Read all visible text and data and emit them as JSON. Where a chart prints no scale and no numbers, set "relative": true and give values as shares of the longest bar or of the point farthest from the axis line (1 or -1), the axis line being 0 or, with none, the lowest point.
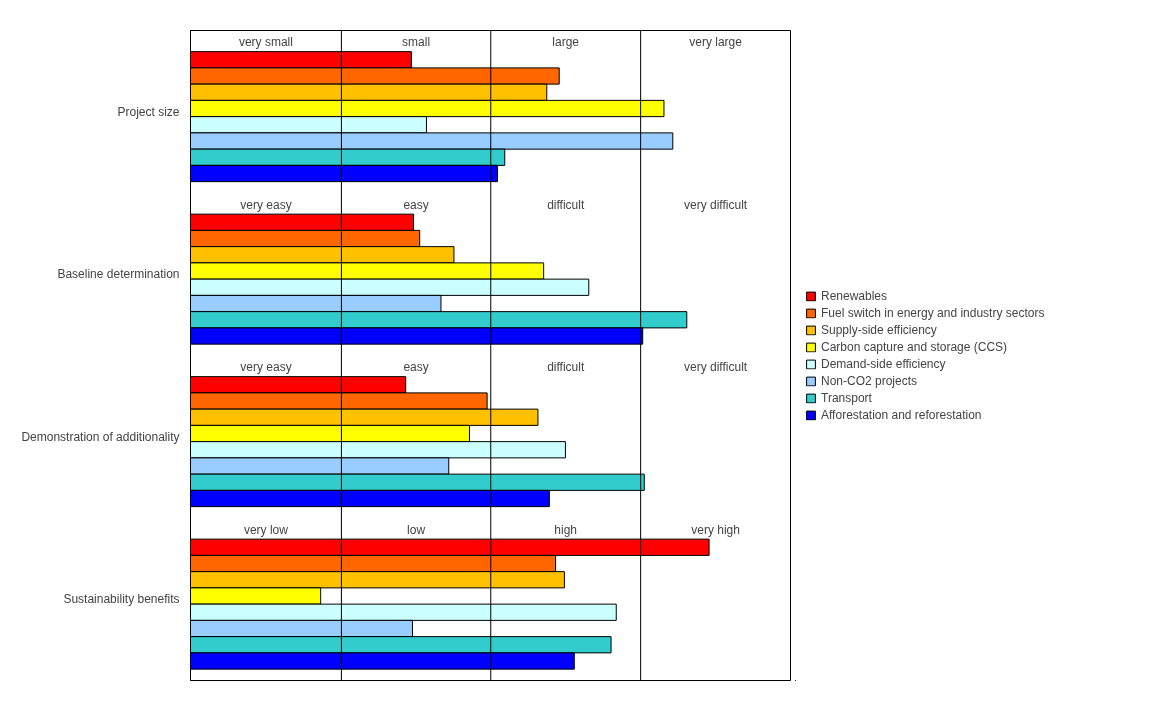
{
  "chart_data": {
    "type": "bar",
    "orientation": "horizontal",
    "relative": true,
    "categories": [
      "Project size",
      "Baseline determination",
      "Demonstration of additionality",
      "Sustainability benefits"
    ],
    "series": [
      {
        "name": "Renewables",
        "color": "#ff0000",
        "values": [
          0.426,
          0.43,
          0.415,
          1.0
        ]
      },
      {
        "name": "Fuel switch in energy and industry sectors",
        "color": "#ff6600",
        "values": [
          0.711,
          0.442,
          0.572,
          0.704
        ]
      },
      {
        "name": "Supply-side efficiency",
        "color": "#ffc000",
        "values": [
          0.687,
          0.508,
          0.67,
          0.721
        ]
      },
      {
        "name": "Carbon capture and storage (CCS)",
        "color": "#ffff00",
        "values": [
          0.913,
          0.681,
          0.538,
          0.251
        ]
      },
      {
        "name": "Demand-side efficiency",
        "color": "#ccffff",
        "values": [
          0.455,
          0.768,
          0.723,
          0.821
        ]
      },
      {
        "name": "Non-CO2 projects",
        "color": "#99ccff",
        "values": [
          0.93,
          0.483,
          0.498,
          0.428
        ]
      },
      {
        "name": "Transport",
        "color": "#33cccc",
        "values": [
          0.606,
          0.957,
          0.875,
          0.811
        ]
      },
      {
        "name": "Afforestation and reforestation",
        "color": "#0000ff",
        "values": [
          0.592,
          0.872,
          0.692,
          0.74
        ]
      }
    ],
    "annotations": [
      "very small",
      "small",
      "large",
      "very large",
      "very easy",
      "easy",
      "difficult",
      "very difficult",
      "very easy",
      "easy",
      "difficult",
      "very difficult",
      "very low",
      "low",
      "high",
      "very high"
    ],
    "ref_lines": [
      {
        "axis": "x",
        "value": 0.291,
        "color": "#000000"
      },
      {
        "axis": "x",
        "value": 0.579,
        "color": "#000000"
      },
      {
        "axis": "x",
        "value": 0.868,
        "color": "#000000"
      },
      {
        "axis": "x",
        "value": 1.157,
        "color": "#000000"
      }
    ],
    "legend": "right"
  }
}
